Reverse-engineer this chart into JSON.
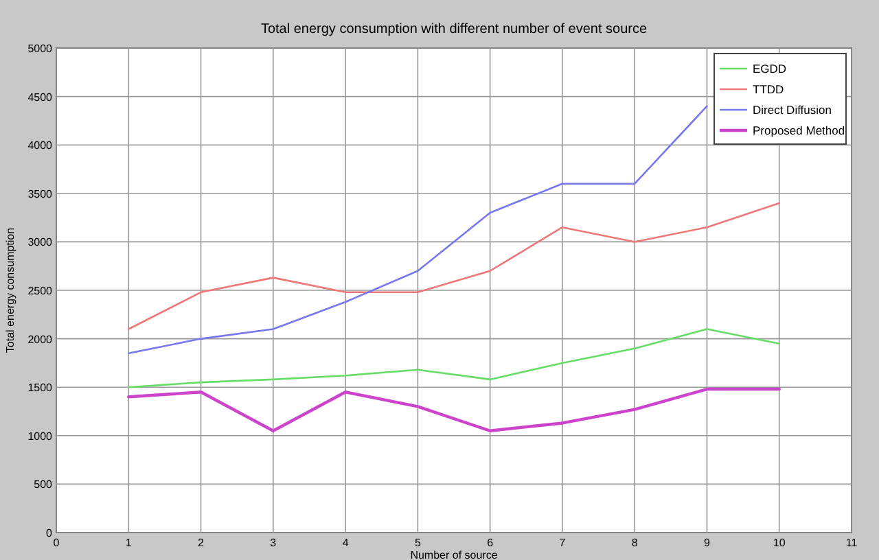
{
  "chart_data": {
    "type": "line",
    "title": "Total energy consumption with different number of event source",
    "xlabel": "Number of source",
    "ylabel": "Total energy consumption",
    "x": [
      1,
      2,
      3,
      4,
      5,
      6,
      7,
      8,
      9,
      10
    ],
    "xlim": [
      0,
      11
    ],
    "xticks": [
      0,
      1,
      2,
      3,
      4,
      5,
      6,
      7,
      8,
      9,
      10,
      11
    ],
    "ylim": [
      0,
      5000
    ],
    "yticks": [
      0,
      500,
      1000,
      1500,
      2000,
      2500,
      3000,
      3500,
      4000,
      4500,
      5000
    ],
    "grid": true,
    "legend": "top right",
    "line_style": "solid",
    "series": [
      {
        "name": "EGDD",
        "color": "#66dd66",
        "values": [
          1500,
          1550,
          1580,
          1620,
          1680,
          1580,
          1750,
          1900,
          2100,
          1950
        ]
      },
      {
        "name": "TTDD",
        "color": "#ee7777",
        "values": [
          2100,
          2480,
          2630,
          2480,
          2480,
          2700,
          3150,
          3000,
          3150,
          3400
        ]
      },
      {
        "name": "Direct Diffusion",
        "color": "#7777ee",
        "values": [
          1850,
          2000,
          2100,
          2380,
          2700,
          3300,
          3600,
          3600,
          4400,
          null
        ]
      },
      {
        "name": "Proposed Method",
        "color": "#cc44cc",
        "values": [
          1400,
          1450,
          1050,
          1450,
          1300,
          1050,
          1130,
          1270,
          1480,
          1480
        ]
      }
    ]
  }
}
